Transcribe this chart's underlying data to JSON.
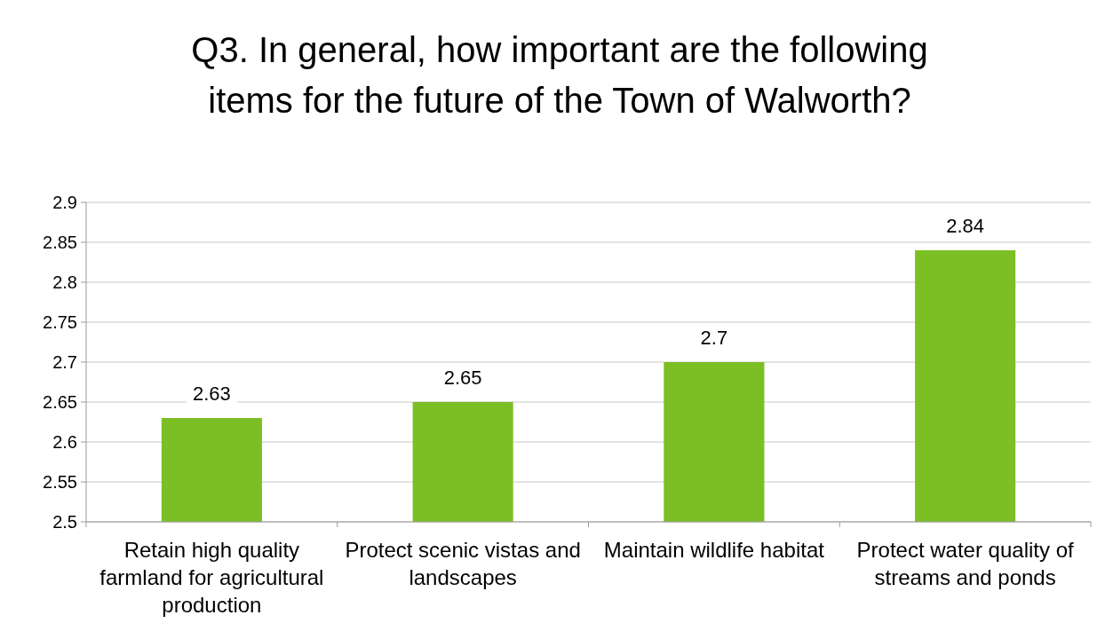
{
  "chart_data": {
    "type": "bar",
    "title": "Q3. In general, how important are the following items for the future of the Town of Walworth?",
    "categories": [
      "Retain high quality farmland for agricultural production",
      "Protect scenic vistas and landscapes",
      "Maintain wildlife habitat",
      "Protect water quality of streams and ponds"
    ],
    "values": [
      2.63,
      2.65,
      2.7,
      2.84
    ],
    "color": "#7bbf25",
    "ylim": [
      2.5,
      2.9
    ],
    "yticks": [
      2.5,
      2.55,
      2.6,
      2.65,
      2.7,
      2.75,
      2.8,
      2.85,
      2.9
    ],
    "grid": "y",
    "data_labels": true
  }
}
